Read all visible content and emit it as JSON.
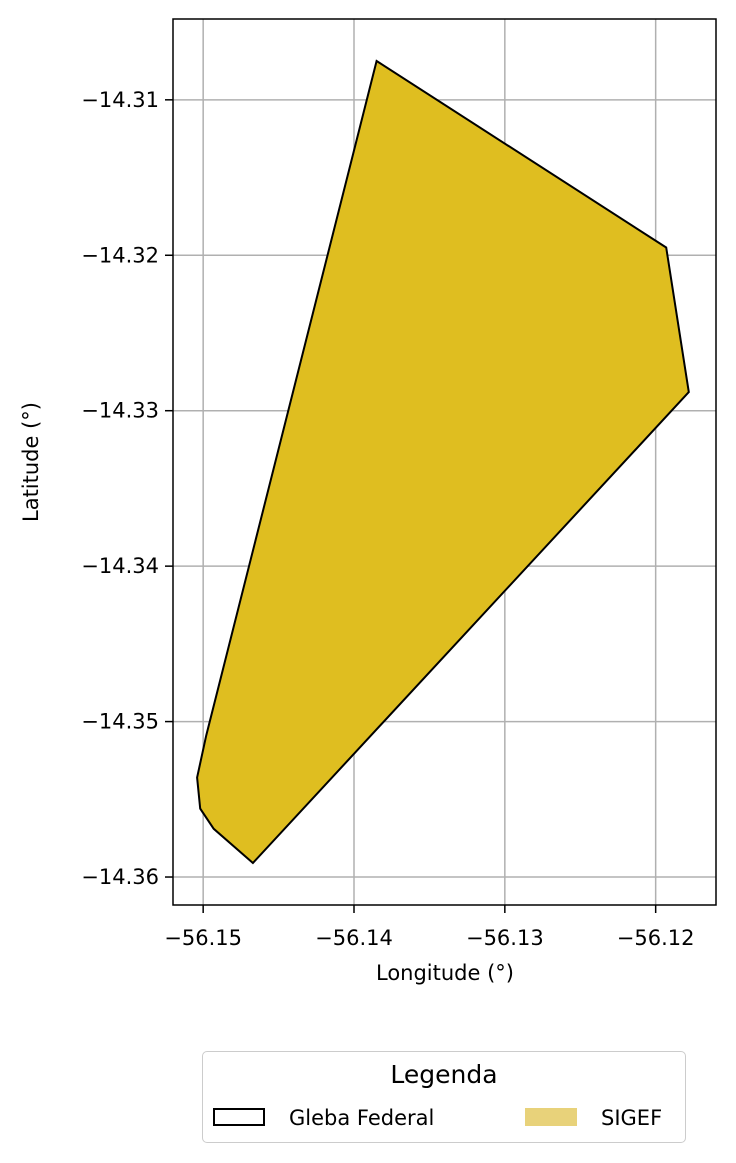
{
  "chart_data": {
    "type": "map",
    "xlabel": "Longitude (°)",
    "ylabel": "Latitude (°)",
    "xlim": [
      -56.152,
      -56.116
    ],
    "ylim": [
      -14.3618,
      -14.3048
    ],
    "grid": true,
    "x_ticks": [
      {
        "value": -56.15,
        "label": "−56.15"
      },
      {
        "value": -56.14,
        "label": "−56.14"
      },
      {
        "value": -56.13,
        "label": "−56.13"
      },
      {
        "value": -56.12,
        "label": "−56.12"
      }
    ],
    "y_ticks": [
      {
        "value": -14.31,
        "label": "−14.31"
      },
      {
        "value": -14.32,
        "label": "−14.32"
      },
      {
        "value": -14.33,
        "label": "−14.33"
      },
      {
        "value": -14.34,
        "label": "−14.34"
      },
      {
        "value": -14.35,
        "label": "−14.35"
      },
      {
        "value": -14.36,
        "label": "−14.36"
      }
    ],
    "polygon": {
      "fill_color": "#dfbe20",
      "edge_color": "#000000",
      "coordinates": [
        [
          -56.1385,
          -14.3075
        ],
        [
          -56.1193,
          -14.3195
        ],
        [
          -56.1178,
          -14.3288
        ],
        [
          -56.1467,
          -14.3591
        ],
        [
          -56.1493,
          -14.3569
        ],
        [
          -56.1502,
          -14.3556
        ],
        [
          -56.1504,
          -14.3536
        ],
        [
          -56.1498,
          -14.3509
        ],
        [
          -56.1385,
          -14.3075
        ]
      ]
    },
    "legend": {
      "title": "Legenda",
      "placement": "bottom-center-outside",
      "entries": [
        {
          "label": "Gleba Federal",
          "fill": "#ffffff",
          "edge": "#000000"
        },
        {
          "label": "SIGEF",
          "fill": "#e8d27a",
          "edge": "#e8d27a"
        }
      ]
    }
  }
}
